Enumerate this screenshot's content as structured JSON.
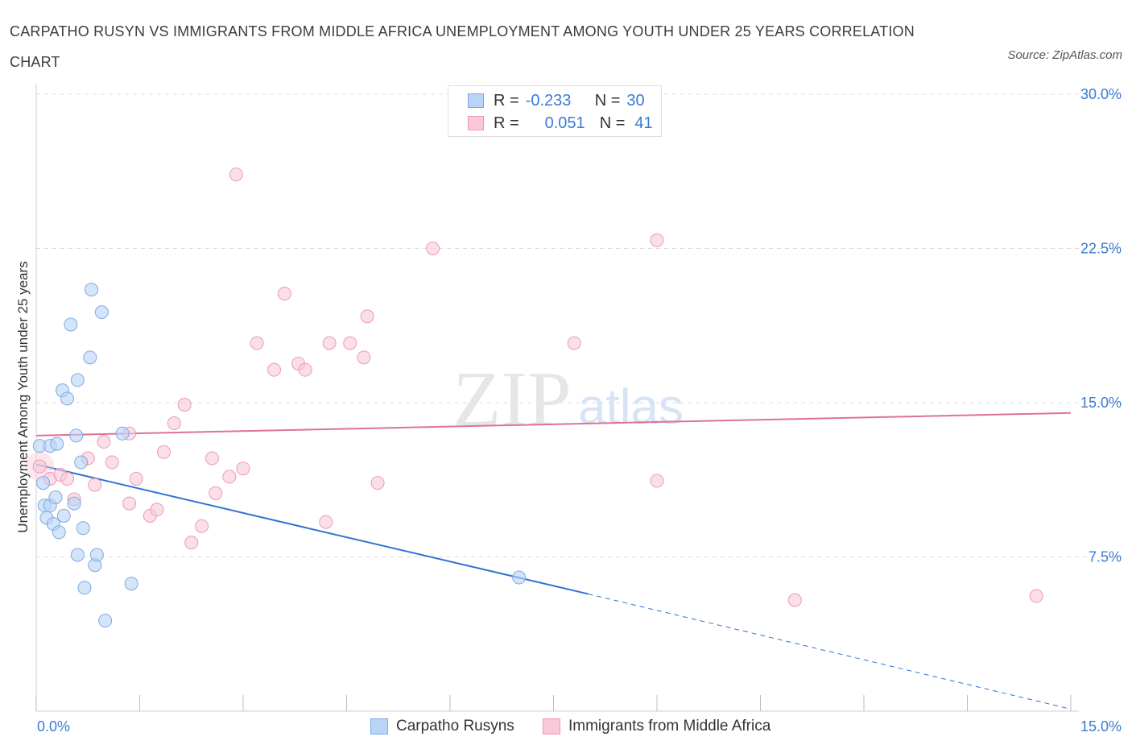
{
  "title": "CARPATHO RUSYN VS IMMIGRANTS FROM MIDDLE AFRICA UNEMPLOYMENT AMONG YOUTH UNDER 25 YEARS CORRELATION CHART",
  "source": "Source: ZipAtlas.com",
  "watermark": {
    "zip": "ZIP",
    "atlas": "atlas"
  },
  "legend": {
    "r_label": "R =",
    "n_label": "N =",
    "series1": {
      "r": "-0.233",
      "n": "30"
    },
    "series2": {
      "r": "0.051",
      "n": "41"
    }
  },
  "colors": {
    "blue_fill": "#b8d4f6",
    "blue_stroke": "#7fa9e0",
    "blue_line": "#2f74d0",
    "pink_fill": "#f9c9d9",
    "pink_stroke": "#ec9ab5",
    "pink_line": "#e0709a",
    "axis_label": "#3a7bd5",
    "grid": "#dcdcdc"
  },
  "chart_data": {
    "type": "scatter",
    "title": "CARPATHO RUSYN VS IMMIGRANTS FROM MIDDLE AFRICA UNEMPLOYMENT AMONG YOUTH UNDER 25 YEARS CORRELATION CHART",
    "xlabel": "",
    "ylabel": "Unemployment Among Youth under 25 years",
    "xlim": [
      0,
      15
    ],
    "ylim": [
      0,
      30
    ],
    "x_tick_labels": [
      "0.0%",
      "15.0%"
    ],
    "y_ticks": [
      7.5,
      15.0,
      22.5,
      30.0
    ],
    "y_tick_labels": [
      "7.5%",
      "15.0%",
      "22.5%",
      "30.0%"
    ],
    "legend_position": "bottom-center",
    "series": [
      {
        "name": "Carpatho Rusyns",
        "r": -0.233,
        "n": 30,
        "trend": {
          "x0": 0,
          "y0": 12.0,
          "x1": 8.0,
          "y1": 5.7,
          "dashed_to_x": 15,
          "dashed_to_y": 0.1
        },
        "points": [
          [
            0.05,
            12.9
          ],
          [
            0.1,
            11.1
          ],
          [
            0.12,
            10.0
          ],
          [
            0.15,
            9.4
          ],
          [
            0.2,
            12.9
          ],
          [
            0.2,
            10.0
          ],
          [
            0.25,
            9.1
          ],
          [
            0.28,
            10.4
          ],
          [
            0.3,
            13.0
          ],
          [
            0.33,
            8.7
          ],
          [
            0.4,
            9.5
          ],
          [
            0.38,
            15.6
          ],
          [
            0.45,
            15.2
          ],
          [
            0.5,
            18.8
          ],
          [
            0.55,
            10.1
          ],
          [
            0.58,
            13.4
          ],
          [
            0.6,
            16.1
          ],
          [
            0.6,
            7.6
          ],
          [
            0.65,
            12.1
          ],
          [
            0.68,
            8.9
          ],
          [
            0.7,
            6.0
          ],
          [
            0.78,
            17.2
          ],
          [
            0.8,
            20.5
          ],
          [
            0.85,
            7.1
          ],
          [
            0.88,
            7.6
          ],
          [
            0.95,
            19.4
          ],
          [
            1.0,
            4.4
          ],
          [
            1.25,
            13.5
          ],
          [
            1.38,
            6.2
          ],
          [
            7.0,
            6.5
          ]
        ]
      },
      {
        "name": "Immigrants from Middle Africa",
        "r": 0.051,
        "n": 41,
        "trend": {
          "x0": 0,
          "y0": 13.4,
          "x1": 15,
          "y1": 14.5
        },
        "points": [
          [
            0.05,
            11.9
          ],
          [
            0.2,
            11.3
          ],
          [
            0.35,
            11.5
          ],
          [
            0.45,
            11.3
          ],
          [
            0.55,
            10.3
          ],
          [
            0.75,
            12.3
          ],
          [
            0.85,
            11.0
          ],
          [
            0.98,
            13.1
          ],
          [
            1.1,
            12.1
          ],
          [
            1.35,
            13.5
          ],
          [
            1.35,
            10.1
          ],
          [
            1.45,
            11.3
          ],
          [
            1.65,
            9.5
          ],
          [
            1.75,
            9.8
          ],
          [
            1.85,
            12.6
          ],
          [
            2.0,
            14.0
          ],
          [
            2.15,
            14.9
          ],
          [
            2.25,
            8.2
          ],
          [
            2.4,
            9.0
          ],
          [
            2.55,
            12.3
          ],
          [
            2.6,
            10.6
          ],
          [
            2.8,
            11.4
          ],
          [
            2.9,
            26.1
          ],
          [
            3.0,
            11.8
          ],
          [
            3.2,
            17.9
          ],
          [
            3.45,
            16.6
          ],
          [
            3.6,
            20.3
          ],
          [
            3.8,
            16.9
          ],
          [
            3.9,
            16.6
          ],
          [
            4.2,
            9.2
          ],
          [
            4.25,
            17.9
          ],
          [
            4.55,
            17.9
          ],
          [
            4.75,
            17.2
          ],
          [
            4.8,
            19.2
          ],
          [
            4.95,
            11.1
          ],
          [
            5.75,
            22.5
          ],
          [
            7.8,
            17.9
          ],
          [
            9.0,
            11.2
          ],
          [
            9.0,
            22.9
          ],
          [
            11.0,
            5.4
          ],
          [
            14.5,
            5.6
          ]
        ]
      }
    ]
  }
}
